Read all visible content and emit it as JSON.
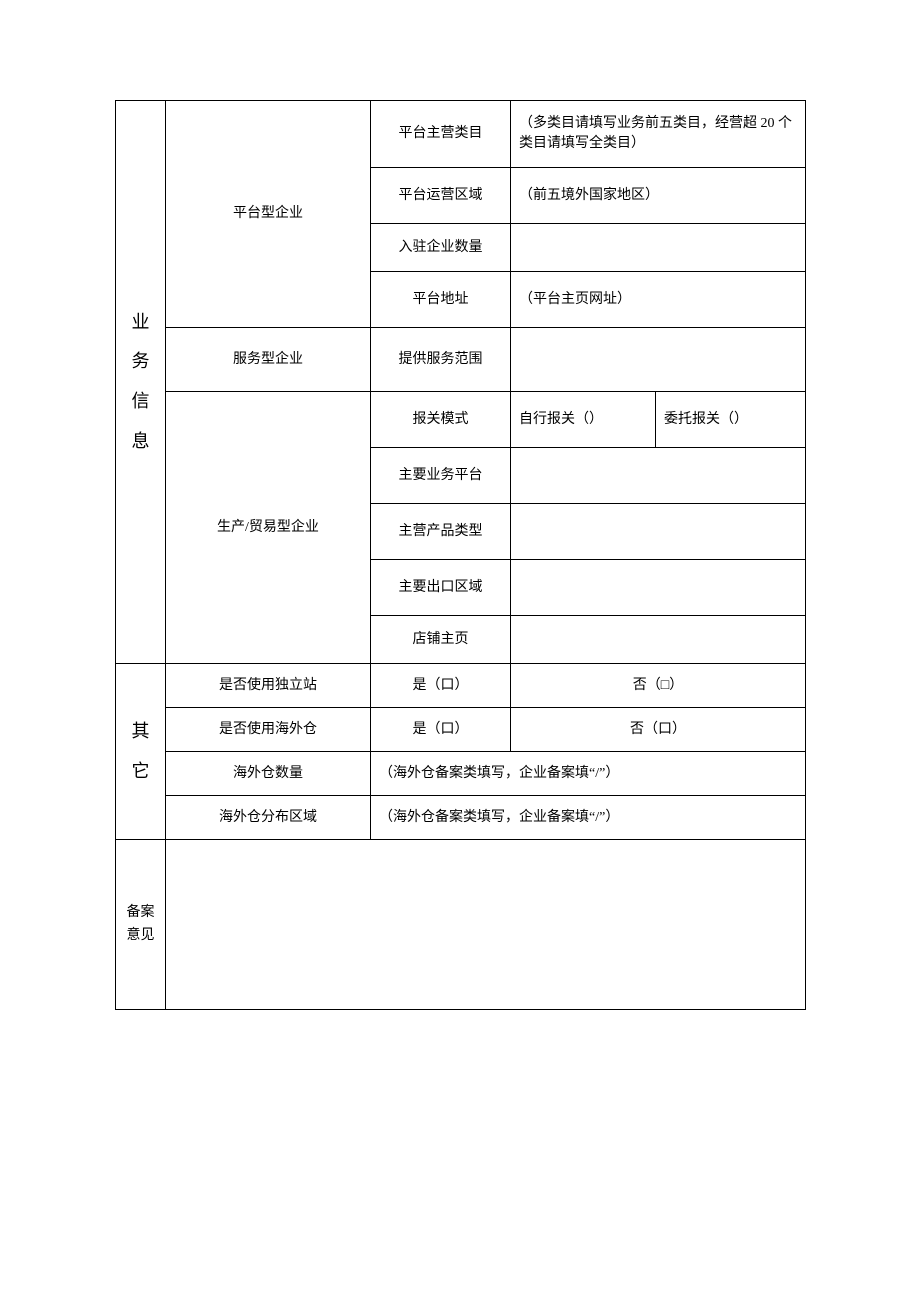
{
  "sections": {
    "business": "业务信息",
    "other": "其它",
    "opinion": "备案意见"
  },
  "business": {
    "platform": {
      "label": "平台型企业",
      "main_category": {
        "label": "平台主营类目",
        "hint": "（多类目请填写业务前五类目，经营超 20 个类目请填写全类目）"
      },
      "region": {
        "label": "平台运营区域",
        "hint": "（前五境外国家地区）"
      },
      "enterprises": {
        "label": "入驻企业数量",
        "value": ""
      },
      "url": {
        "label": "平台地址",
        "hint": "（平台主页网址）"
      }
    },
    "service": {
      "label": "服务型企业",
      "scope": {
        "label": "提供服务范围",
        "value": ""
      }
    },
    "trade": {
      "label": "生产/贸易型企业",
      "customs_mode": {
        "label": "报关模式",
        "self": "自行报关（）",
        "delegate": "委托报关（）"
      },
      "main_platform": {
        "label": "主要业务平台",
        "value": ""
      },
      "product_type": {
        "label": "主营产品类型",
        "value": ""
      },
      "export_region": {
        "label": "主要出口区域",
        "value": ""
      },
      "shop_home": {
        "label": "店铺主页",
        "value": ""
      }
    }
  },
  "other": {
    "indep_site": {
      "label": "是否使用独立站",
      "yes": "是（口）",
      "no": "否（□）"
    },
    "overseas_wh": {
      "label": "是否使用海外仓",
      "yes": "是（口）",
      "no": "否（口）"
    },
    "wh_count": {
      "label": "海外仓数量",
      "hint": "（海外仓备案类填写，企业备案填“/”）"
    },
    "wh_region": {
      "label": "海外仓分布区域",
      "hint": "（海外仓备案类填写，企业备案填“/”）"
    }
  },
  "opinion": {
    "value": ""
  },
  "row_heights": {
    "platform_cat": 67,
    "standard": 56,
    "small": 48,
    "service": 64,
    "other_row": 44,
    "opinion": 170
  }
}
